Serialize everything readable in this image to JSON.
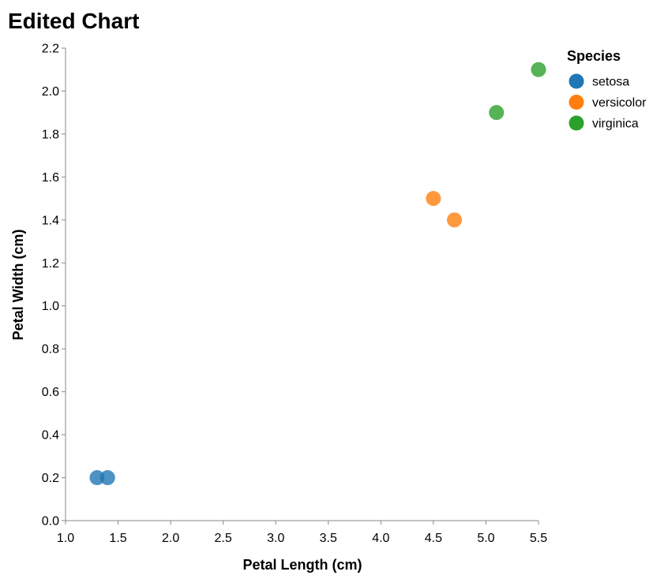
{
  "chart_data": {
    "type": "scatter",
    "title": "Edited Chart",
    "xlabel": "Petal Length (cm)",
    "ylabel": "Petal Width (cm)",
    "xlim": [
      1.0,
      5.5
    ],
    "ylim": [
      0.0,
      2.2
    ],
    "x_ticks": [
      "1.0",
      "1.5",
      "2.0",
      "2.5",
      "3.0",
      "3.5",
      "4.0",
      "4.5",
      "5.0",
      "5.5"
    ],
    "y_ticks": [
      "0.0",
      "0.2",
      "0.4",
      "0.6",
      "0.8",
      "1.0",
      "1.2",
      "1.4",
      "1.6",
      "1.8",
      "2.0",
      "2.2"
    ],
    "grid": false,
    "legend": {
      "title": "Species",
      "position": "top-right"
    },
    "series": [
      {
        "name": "setosa",
        "color": "#1f77b4",
        "points": [
          {
            "x": 1.4,
            "y": 0.2
          },
          {
            "x": 1.3,
            "y": 0.2
          }
        ]
      },
      {
        "name": "versicolor",
        "color": "#ff7f0e",
        "points": [
          {
            "x": 4.7,
            "y": 1.4
          },
          {
            "x": 4.5,
            "y": 1.5
          }
        ]
      },
      {
        "name": "virginica",
        "color": "#2ca02c",
        "points": [
          {
            "x": 5.1,
            "y": 1.9
          },
          {
            "x": 5.5,
            "y": 2.1
          }
        ]
      }
    ]
  }
}
